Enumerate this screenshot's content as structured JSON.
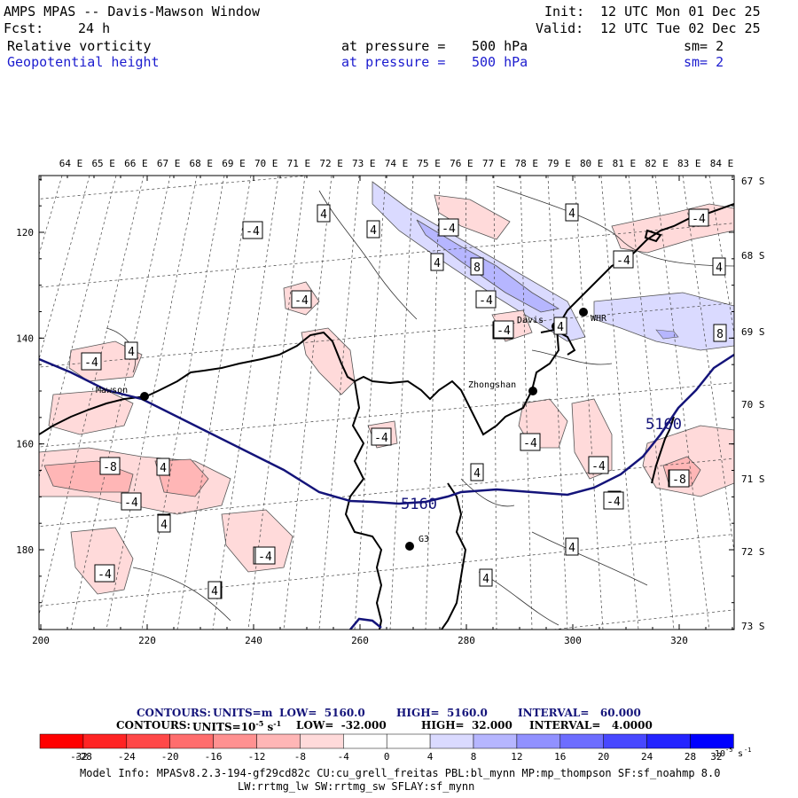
{
  "header": {
    "title": "AMPS MPAS -- Davis-Mawson Window",
    "forecast_label": "Fcst:",
    "forecast_value": "24 h",
    "init_label": "Init:",
    "init_value": "12 UTC Mon 01 Dec 25",
    "valid_label": "Valid:",
    "valid_value": "12 UTC Tue 02 Dec 25",
    "field1": {
      "name": "Relative vorticity",
      "pressure_text": "at pressure =",
      "pressure_value": "500 hPa",
      "smooth": "sm= 2"
    },
    "field2": {
      "name": "Geopotential height",
      "pressure_text": "at pressure =",
      "pressure_value": "500 hPa",
      "smooth": "sm= 2"
    }
  },
  "map": {
    "lon_labels": [
      "64 E",
      "65 E",
      "66 E",
      "67 E",
      "68 E",
      "69 E",
      "70 E",
      "71 E",
      "72 E",
      "73 E",
      "74 E",
      "75 E",
      "76 E",
      "77 E",
      "78 E",
      "79 E",
      "80 E",
      "81 E",
      "82 E",
      "83 E",
      "84 E"
    ],
    "lat_labels": [
      "67 S",
      "68 S",
      "69 S",
      "70 S",
      "71 S",
      "72 S",
      "73 S"
    ],
    "x_ticks": [
      "200",
      "220",
      "240",
      "260",
      "280",
      "300",
      "320"
    ],
    "y_ticks": [
      "120",
      "140",
      "160",
      "180"
    ],
    "stations": [
      {
        "name": "Mawson"
      },
      {
        "name": "Zhongshan"
      },
      {
        "name": "Davis"
      },
      {
        "name": "WHR"
      },
      {
        "name": "G3"
      }
    ],
    "height_labels": [
      "5160",
      "5160"
    ],
    "vorticity_labels": [
      "4",
      "-4",
      "4",
      "-4",
      "4",
      "-4",
      "8",
      "4",
      "-4",
      "-4",
      "4",
      "-4",
      "4",
      "-8",
      "4",
      "-4",
      "4",
      "-4",
      "4",
      "-8",
      "-4",
      "4",
      "4",
      "-4",
      "-4",
      "-4",
      "4",
      "-4",
      "8",
      "-4",
      "4",
      "4",
      "-4",
      "-8",
      "-4",
      "4",
      "-4",
      "4",
      "4"
    ]
  },
  "colorbar": {
    "line1": {
      "label": "CONTOURS:",
      "units": "UNITS=m",
      "low": "LOW=  5160.0",
      "high": "HIGH=  5160.0",
      "interval": "INTERVAL=   60.000"
    },
    "line2": {
      "label": "CONTOURS:",
      "units": "UNITS=10",
      "units_exp": "-5",
      "units_tail": "s",
      "units_tail_exp": "-1",
      "low": "LOW=  -32.000",
      "high": "HIGH=  32.000",
      "interval": "INTERVAL=   4.0000"
    },
    "colors": [
      "#ff0000",
      "#ff2424",
      "#ff4848",
      "#ff6d6d",
      "#ff9191",
      "#ffb6b6",
      "#ffdada",
      "#ffffff",
      "#ffffff",
      "#dadaff",
      "#b6b6ff",
      "#9191ff",
      "#6d6dff",
      "#4848ff",
      "#2424ff",
      "#0000ff"
    ],
    "ticks": [
      "-32",
      "-28",
      "-24",
      "-20",
      "-16",
      "-12",
      "-8",
      "-4",
      "0",
      "4",
      "8",
      "12",
      "16",
      "20",
      "24",
      "28",
      "32"
    ],
    "unit_label": "10",
    "unit_exp1": "-5",
    "unit_s": "s",
    "unit_exp2": "-1"
  },
  "footer": {
    "line1": "Model Info: MPASv8.2.3-194-gf29cd82c CU:cu_grell_freitas PBL:bl_mynn MP:mp_thompson SF:sf_noahmp 8.0",
    "line2": "LW:rrtmg_lw SW:rrtmg_sw SFLAY:sf_mynn"
  }
}
